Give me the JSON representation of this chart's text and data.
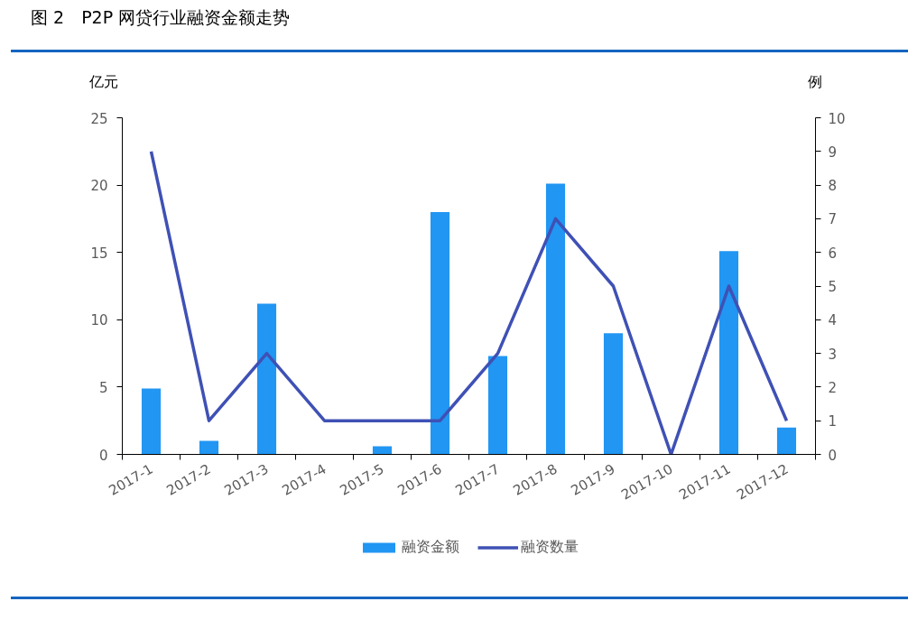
{
  "chart_data": {
    "type": "bar",
    "title": "图 2　P2P 网贷行业融资金额走势",
    "ylabel": "亿元",
    "y2label": "例",
    "categories": [
      "2017-1",
      "2017-2",
      "2017-3",
      "2017-4",
      "2017-5",
      "2017-6",
      "2017-7",
      "2017-8",
      "2017-9",
      "2017-10",
      "2017-11",
      "2017-12"
    ],
    "series": [
      {
        "name": "融资金额",
        "type": "bar",
        "color": "#2196f3",
        "values": [
          4.9,
          1.0,
          11.2,
          0,
          0.6,
          18.0,
          7.3,
          20.1,
          9.0,
          0,
          15.1,
          2.0
        ]
      },
      {
        "name": "融资数量",
        "type": "line",
        "axis": "y2",
        "color": "#3f51b5",
        "values": [
          9,
          1,
          3,
          1,
          1,
          1,
          3,
          7,
          5,
          0,
          5,
          1
        ]
      }
    ],
    "ylim": [
      0,
      25
    ],
    "yticks": [
      0,
      5,
      10,
      15,
      20,
      25
    ],
    "y2lim": [
      0,
      10
    ],
    "y2ticks": [
      0,
      1,
      2,
      3,
      4,
      5,
      6,
      7,
      8,
      9,
      10
    ],
    "grid": false,
    "legend": "bottom"
  }
}
